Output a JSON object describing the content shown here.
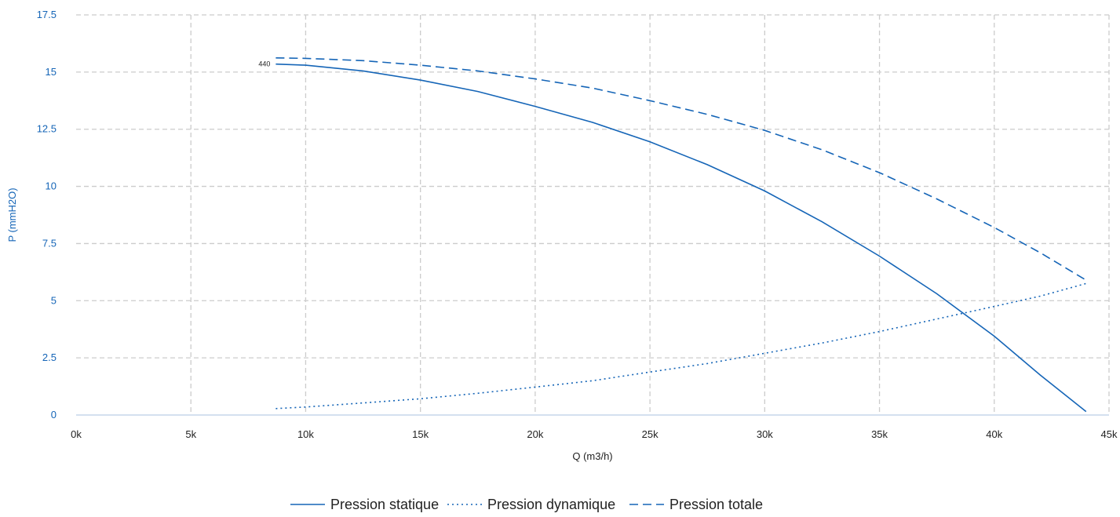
{
  "chart_data": {
    "type": "line",
    "xlabel": "Q (m3/h)",
    "ylabel": "P (mmH2O)",
    "xlim": [
      0,
      45000
    ],
    "ylim": [
      0,
      17.5
    ],
    "x_ticks": [
      {
        "value": 0,
        "label": "0k"
      },
      {
        "value": 5000,
        "label": "5k"
      },
      {
        "value": 10000,
        "label": "10k"
      },
      {
        "value": 15000,
        "label": "15k"
      },
      {
        "value": 20000,
        "label": "20k"
      },
      {
        "value": 25000,
        "label": "25k"
      },
      {
        "value": 30000,
        "label": "30k"
      },
      {
        "value": 35000,
        "label": "35k"
      },
      {
        "value": 40000,
        "label": "40k"
      },
      {
        "value": 45000,
        "label": "45k"
      }
    ],
    "y_ticks": [
      {
        "value": 0,
        "label": "0"
      },
      {
        "value": 2.5,
        "label": "2.5"
      },
      {
        "value": 5,
        "label": "5"
      },
      {
        "value": 7.5,
        "label": "7.5"
      },
      {
        "value": 10,
        "label": "10"
      },
      {
        "value": 12.5,
        "label": "12.5"
      },
      {
        "value": 15,
        "label": "15"
      },
      {
        "value": 17.5,
        "label": "17.5"
      }
    ],
    "grid": true,
    "legend_position": "bottom-center",
    "curve_label": "440",
    "series": [
      {
        "name": "Pression statique",
        "style": "solid",
        "color": "#1565b7",
        "points": [
          [
            8700,
            15.35
          ],
          [
            10000,
            15.3
          ],
          [
            12500,
            15.05
          ],
          [
            15000,
            14.65
          ],
          [
            17500,
            14.15
          ],
          [
            20000,
            13.5
          ],
          [
            22500,
            12.8
          ],
          [
            25000,
            11.95
          ],
          [
            27500,
            10.95
          ],
          [
            30000,
            9.8
          ],
          [
            32500,
            8.45
          ],
          [
            35000,
            6.95
          ],
          [
            37500,
            5.3
          ],
          [
            40000,
            3.45
          ],
          [
            42000,
            1.75
          ],
          [
            44000,
            0.15
          ]
        ]
      },
      {
        "name": "Pression dynamique",
        "style": "dotted",
        "color": "#1565b7",
        "points": [
          [
            8700,
            0.28
          ],
          [
            10000,
            0.35
          ],
          [
            12500,
            0.53
          ],
          [
            15000,
            0.71
          ],
          [
            17500,
            0.95
          ],
          [
            20000,
            1.22
          ],
          [
            22500,
            1.5
          ],
          [
            25000,
            1.88
          ],
          [
            27500,
            2.25
          ],
          [
            30000,
            2.7
          ],
          [
            32500,
            3.15
          ],
          [
            35000,
            3.65
          ],
          [
            37500,
            4.2
          ],
          [
            40000,
            4.75
          ],
          [
            42000,
            5.2
          ],
          [
            44000,
            5.75
          ]
        ]
      },
      {
        "name": "Pression totale",
        "style": "dashed",
        "color": "#1565b7",
        "points": [
          [
            8700,
            15.62
          ],
          [
            10000,
            15.6
          ],
          [
            12500,
            15.5
          ],
          [
            15000,
            15.3
          ],
          [
            17500,
            15.05
          ],
          [
            20000,
            14.7
          ],
          [
            22500,
            14.3
          ],
          [
            25000,
            13.75
          ],
          [
            27500,
            13.15
          ],
          [
            30000,
            12.45
          ],
          [
            32500,
            11.6
          ],
          [
            35000,
            10.6
          ],
          [
            37500,
            9.45
          ],
          [
            40000,
            8.2
          ],
          [
            42000,
            7.1
          ],
          [
            44000,
            5.9
          ]
        ]
      }
    ]
  }
}
